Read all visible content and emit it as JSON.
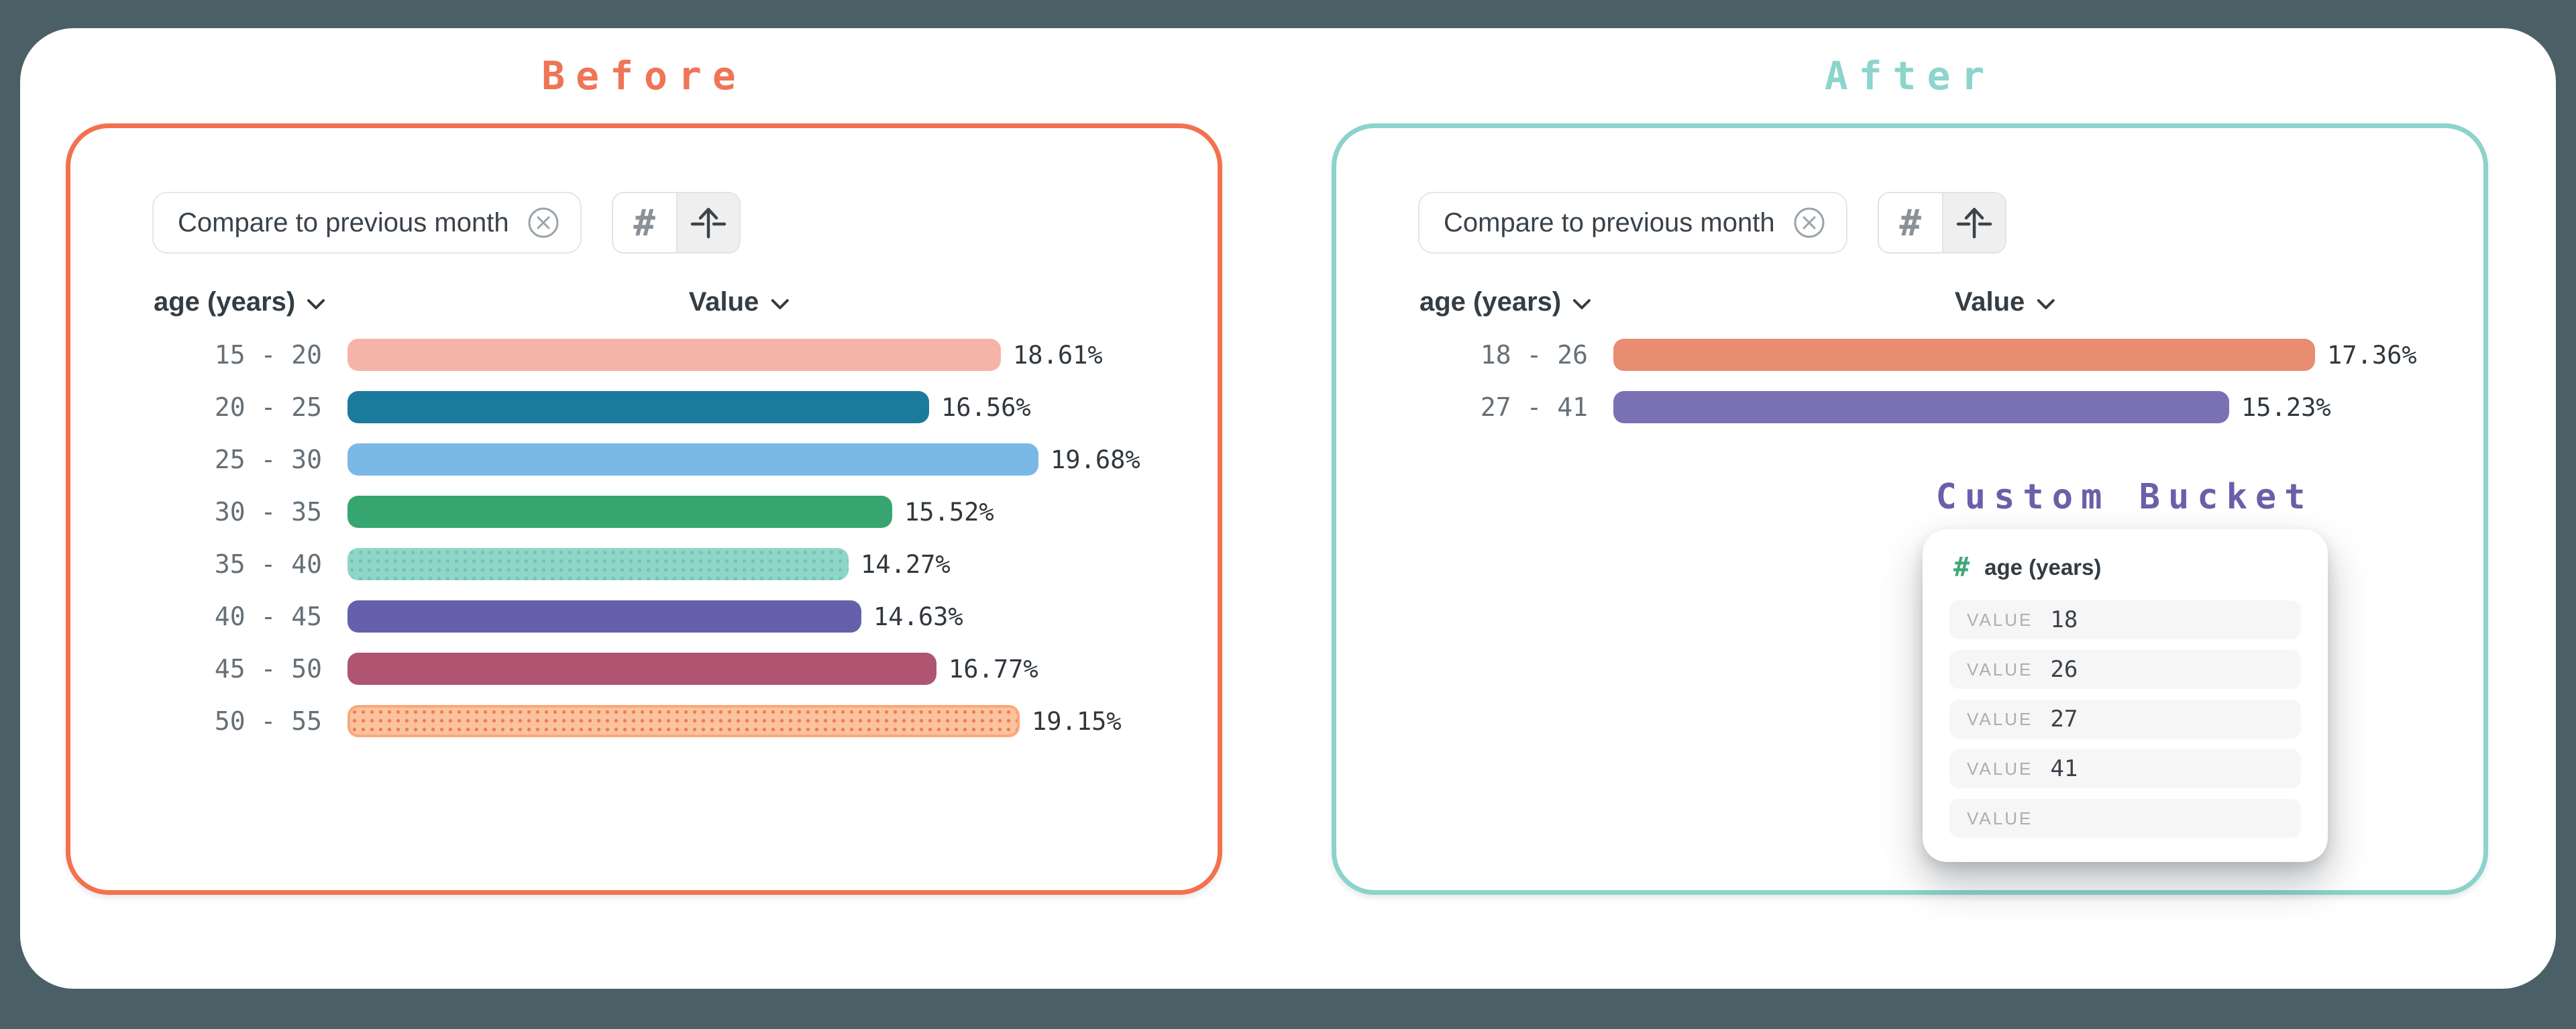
{
  "background_color": "#4A6066",
  "panels": [
    {
      "id": "before",
      "title": "Before",
      "accent_color": "#F3714E",
      "title_color": "#EF7557",
      "filter_chip": {
        "label": "Compare to previous month"
      },
      "toolbar": {
        "buttons": [
          {
            "icon": "hash-icon",
            "active": false
          },
          {
            "icon": "arrow-up-icon",
            "active": true
          }
        ]
      },
      "columns": {
        "dimension": "age (years)",
        "measure": "Value"
      },
      "chart_data": {
        "type": "bar",
        "orientation": "horizontal",
        "categories": [
          "15 - 20",
          "20 - 25",
          "25 - 30",
          "30 - 35",
          "35 - 40",
          "40 - 45",
          "45 - 50",
          "50 - 55"
        ],
        "values": [
          18.61,
          16.56,
          19.68,
          15.52,
          14.27,
          14.63,
          16.77,
          19.15
        ],
        "value_labels": [
          "18.61%",
          "16.56%",
          "19.68%",
          "15.52%",
          "14.27%",
          "14.63%",
          "16.77%",
          "19.15%"
        ],
        "bars": [
          {
            "color": "#F6B4A8"
          },
          {
            "color": "#1C7A9C"
          },
          {
            "color": "#7AB8E8"
          },
          {
            "color": "#36A56F"
          },
          {
            "color": "#8FD5C9",
            "dot_color": "#6FC6B3"
          },
          {
            "color": "#6560AC"
          },
          {
            "color": "#AF5471"
          },
          {
            "color": "#FBC29E",
            "dot_color": "#F07D52",
            "edge_color": "#F8A978"
          }
        ]
      }
    },
    {
      "id": "after",
      "title": "After",
      "accent_color": "#8BD3CB",
      "title_color": "#8BD5CC",
      "filter_chip": {
        "label": "Compare to previous month"
      },
      "toolbar": {
        "buttons": [
          {
            "icon": "hash-icon",
            "active": false
          },
          {
            "icon": "arrow-up-icon",
            "active": true
          }
        ]
      },
      "columns": {
        "dimension": "age (years)",
        "measure": "Value"
      },
      "chart_data": {
        "type": "bar",
        "orientation": "horizontal",
        "categories": [
          "18 - 26",
          "27 - 41"
        ],
        "values": [
          17.36,
          15.23
        ],
        "value_labels": [
          "17.36%",
          "15.23%"
        ],
        "bars": [
          {
            "color": "#E88C72"
          },
          {
            "color": "#7A71B5"
          }
        ]
      },
      "custom_bucket": {
        "title": "Custom Bucket",
        "title_color": "#6A5FA8",
        "field_icon": "hash-icon",
        "field_icon_color": "#41A876",
        "field": "age (years)",
        "rows": [
          {
            "label": "VALUE",
            "value": "18"
          },
          {
            "label": "VALUE",
            "value": "26"
          },
          {
            "label": "VALUE",
            "value": "27"
          },
          {
            "label": "VALUE",
            "value": "41"
          },
          {
            "label": "VALUE",
            "value": ""
          }
        ]
      }
    }
  ]
}
